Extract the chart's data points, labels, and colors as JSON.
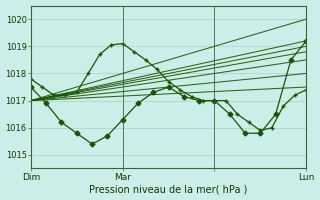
{
  "xlabel": "Pression niveau de la mer( hPa )",
  "bg_color": "#cceee8",
  "line_color": "#1a5500",
  "marker_color": "#1a5500",
  "ylim": [
    1014.5,
    1020.5
  ],
  "xlim": [
    0,
    72
  ],
  "yticks": [
    1015,
    1016,
    1017,
    1018,
    1019,
    1020
  ],
  "xtick_positions": [
    0,
    24,
    48,
    72
  ],
  "xtick_labels": [
    "Dim",
    "Mar",
    "",
    "Lun"
  ],
  "vline_positions": [
    24,
    48
  ],
  "ensemble_lines": [
    [
      [
        0,
        72
      ],
      [
        1017.0,
        1020.0
      ]
    ],
    [
      [
        0,
        72
      ],
      [
        1017.0,
        1019.2
      ]
    ],
    [
      [
        0,
        72
      ],
      [
        1017.0,
        1019.0
      ]
    ],
    [
      [
        0,
        72
      ],
      [
        1017.0,
        1018.8
      ]
    ],
    [
      [
        0,
        72
      ],
      [
        1017.0,
        1018.5
      ]
    ],
    [
      [
        0,
        72
      ],
      [
        1017.0,
        1018.0
      ]
    ],
    [
      [
        0,
        72
      ],
      [
        1017.0,
        1017.5
      ]
    ]
  ],
  "main_x": [
    0,
    3,
    6,
    9,
    12,
    15,
    18,
    21,
    24,
    27,
    30,
    33,
    36,
    39,
    42,
    45,
    48,
    51,
    54,
    57,
    60,
    63,
    66,
    69,
    72
  ],
  "main_y": [
    1017.8,
    1017.5,
    1017.2,
    1017.2,
    1017.3,
    1018.0,
    1018.7,
    1019.05,
    1019.1,
    1018.8,
    1018.5,
    1018.15,
    1017.7,
    1017.4,
    1017.15,
    1017.0,
    1017.0,
    1017.0,
    1016.5,
    1016.2,
    1015.9,
    1016.0,
    1016.8,
    1017.2,
    1017.4
  ],
  "second_x": [
    0,
    4,
    8,
    12,
    16,
    20,
    24,
    28,
    32,
    36,
    40,
    44,
    48,
    52,
    56,
    60,
    64,
    68,
    72
  ],
  "second_y": [
    1017.5,
    1016.9,
    1016.2,
    1015.8,
    1015.4,
    1015.7,
    1016.3,
    1016.9,
    1017.3,
    1017.5,
    1017.15,
    1017.0,
    1017.0,
    1016.5,
    1015.8,
    1015.8,
    1016.5,
    1018.5,
    1019.2
  ]
}
